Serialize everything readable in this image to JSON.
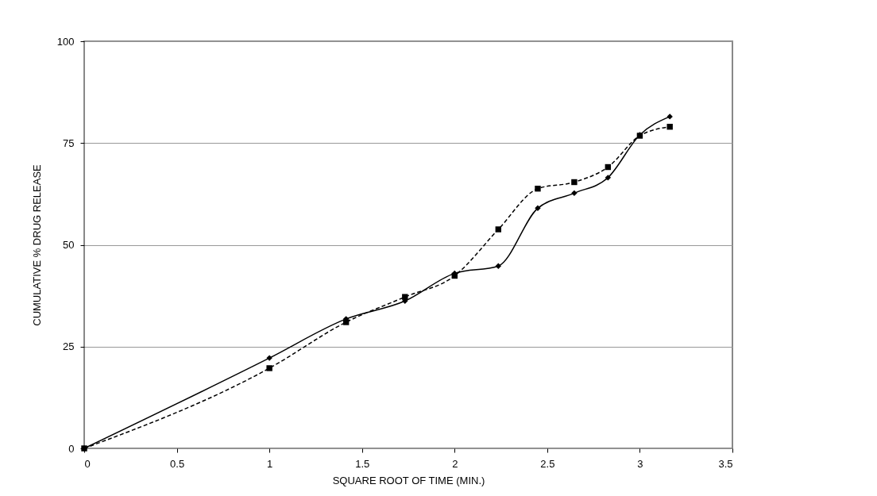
{
  "chart_data": {
    "type": "line",
    "xlabel": "SQUARE ROOT OF TIME (MIN.)",
    "ylabel": "CUMULATIVE % DRUG RELEASE",
    "x": [
      0,
      1,
      1.414,
      1.732,
      2,
      2.236,
      2.449,
      2.646,
      2.828,
      3,
      3.162
    ],
    "series": [
      {
        "color": "#000000",
        "marker": "diamond",
        "line_style": "solid",
        "values": [
          0,
          22.2,
          31.8,
          36.2,
          43,
          44.8,
          59,
          62.7,
          66.5,
          77,
          81.5
        ]
      },
      {
        "color": "#000000",
        "marker": "square",
        "line_style": "dashed",
        "values": [
          0,
          19.7,
          31,
          37.2,
          42.4,
          53.8,
          63.8,
          65.4,
          69.1,
          76.8,
          79
        ]
      }
    ],
    "xlim": [
      0,
      3.5
    ],
    "xticks": [
      0,
      0.5,
      1,
      1.5,
      2,
      2.5,
      3,
      3.5
    ],
    "ylim": [
      0,
      100
    ],
    "yticks": [
      0,
      25,
      50,
      75,
      100
    ],
    "grid": "y"
  }
}
